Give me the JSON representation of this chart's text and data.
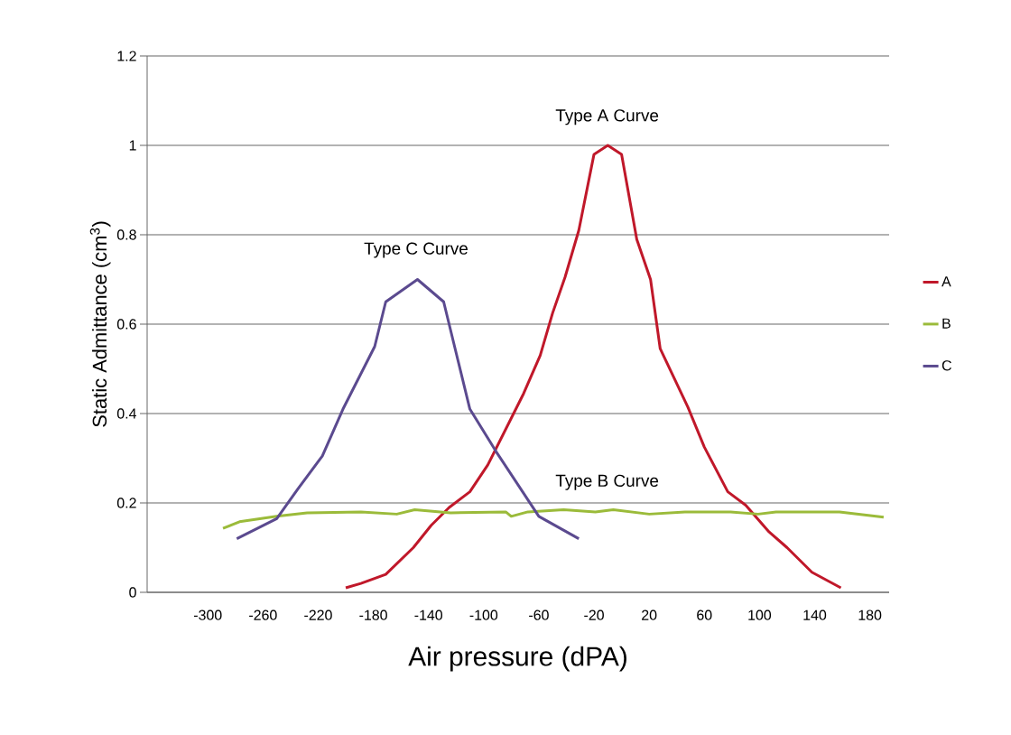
{
  "chart_data": {
    "type": "line",
    "xlabel": "Air pressure (dPA)",
    "ylabel": "Static Admittance (cm$^{3}$)",
    "xlim": [
      -344,
      194
    ],
    "xticks": [
      -300,
      -260,
      -220,
      -180,
      -140,
      -100,
      -60,
      -20,
      20,
      60,
      100,
      140,
      180
    ],
    "ylim": [
      0,
      1.2
    ],
    "yticks": [
      0,
      0.2,
      0.4,
      0.6,
      0.8,
      1,
      1.2
    ],
    "grid": "y",
    "legend": "right",
    "marker": "none",
    "line_style": "solid",
    "series": [
      {
        "name": "A",
        "color": "#c0182a",
        "x": [
          -200,
          -189,
          -171,
          -151,
          -138,
          -125,
          -110,
          -97,
          -84,
          -71,
          -59,
          -50,
          -41,
          -31,
          -20,
          -10,
          0,
          11,
          21,
          28,
          48,
          60,
          77,
          90,
          107,
          120,
          138,
          159
        ],
        "values": [
          0.01,
          0.02,
          0.04,
          0.1,
          0.15,
          0.19,
          0.225,
          0.285,
          0.365,
          0.445,
          0.53,
          0.625,
          0.705,
          0.81,
          0.98,
          1.0,
          0.98,
          0.79,
          0.7,
          0.545,
          0.415,
          0.325,
          0.225,
          0.195,
          0.135,
          0.1,
          0.045,
          0.01
        ]
      },
      {
        "name": "B",
        "color": "#9bbb3a",
        "x": [
          -289,
          -277,
          -250,
          -228,
          -189,
          -163,
          -150,
          -124,
          -84,
          -80,
          -68,
          -42,
          -19,
          -6,
          20,
          46,
          79,
          99,
          112,
          158,
          190
        ],
        "values": [
          0.143,
          0.158,
          0.17,
          0.178,
          0.18,
          0.175,
          0.185,
          0.178,
          0.18,
          0.17,
          0.18,
          0.185,
          0.18,
          0.185,
          0.175,
          0.18,
          0.18,
          0.175,
          0.18,
          0.18,
          0.168
        ]
      },
      {
        "name": "C",
        "color": "#5b4a8f",
        "x": [
          -279,
          -250,
          -235,
          -217,
          -202,
          -179,
          -171,
          -148,
          -129,
          -110,
          -91,
          -60,
          -31
        ],
        "values": [
          0.12,
          0.165,
          0.23,
          0.305,
          0.41,
          0.55,
          0.65,
          0.7,
          0.65,
          0.41,
          0.315,
          0.17,
          0.12
        ]
      }
    ],
    "annotations": [
      "Type A Curve",
      "Type C Curve",
      "Type B Curve"
    ]
  }
}
